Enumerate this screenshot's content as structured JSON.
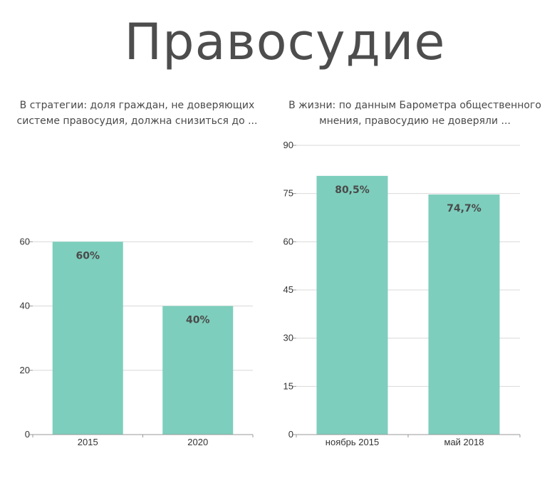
{
  "page": {
    "title": "Правосудие"
  },
  "colors": {
    "bar": "#7dcebd",
    "grid": "#d9d9d9",
    "axis": "#999999"
  },
  "chart_data": [
    {
      "type": "bar",
      "title": "В стратегии: доля граждан, не доверяющих системе правосудия, должна снизиться до ...",
      "categories": [
        "2015",
        "2020"
      ],
      "values": [
        60,
        40
      ],
      "data_labels": [
        "60%",
        "40%"
      ],
      "ylim": [
        0,
        90
      ],
      "yticks": [
        0,
        20,
        40,
        60
      ],
      "xlabel": "",
      "ylabel": "",
      "grid": true,
      "legend": "none"
    },
    {
      "type": "bar",
      "title": "В жизни: по данным Барометра общественного мнения, правосудию не доверяли ...",
      "categories": [
        "ноябрь 2015",
        "май 2018"
      ],
      "values": [
        80.5,
        74.7
      ],
      "data_labels": [
        "80,5%",
        "74,7%"
      ],
      "ylim": [
        0,
        90
      ],
      "yticks": [
        0,
        15,
        30,
        45,
        60,
        75,
        90
      ],
      "xlabel": "",
      "ylabel": "",
      "grid": true,
      "legend": "none"
    }
  ]
}
